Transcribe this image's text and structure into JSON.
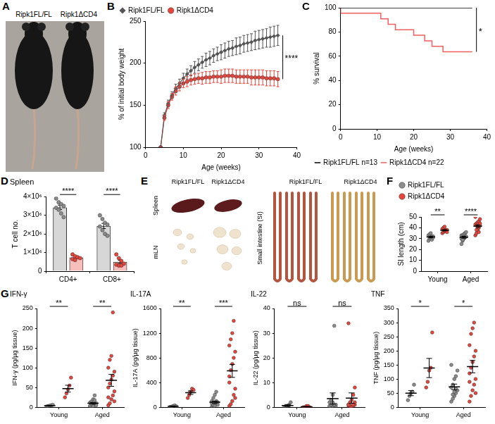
{
  "chart_data": [
    {
      "type": "line",
      "panel": "B",
      "x_label": "Age (weeks)",
      "y_label": "% of initial body weight",
      "x": [
        4,
        5,
        6,
        7,
        8,
        9,
        10,
        11,
        12,
        13,
        14,
        15,
        16,
        17,
        18,
        19,
        20,
        21,
        22,
        23,
        24,
        25,
        26,
        27,
        28,
        29,
        30,
        31,
        32,
        33,
        34,
        35
      ],
      "xlim": [
        0,
        40
      ],
      "xticks": [
        0,
        10,
        20,
        30,
        40
      ],
      "ylim": [
        100,
        250
      ],
      "yticks": [
        100,
        150,
        200,
        250
      ],
      "grid": false,
      "legend": "top",
      "series": [
        {
          "name": "Ripk1FL/FL",
          "color": "#555555",
          "marker": "diamond",
          "values": [
            100,
            138,
            152,
            162,
            170,
            176,
            182,
            187,
            191,
            195,
            198,
            201,
            204,
            206,
            209,
            211,
            213,
            215,
            217,
            218,
            220,
            221,
            223,
            224,
            225,
            227,
            228,
            229,
            230,
            231,
            232,
            233
          ],
          "errors": [
            0,
            3,
            4,
            4,
            5,
            5,
            6,
            6,
            6,
            7,
            7,
            7,
            8,
            8,
            8,
            8,
            9,
            9,
            9,
            9,
            10,
            10,
            10,
            10,
            10,
            11,
            11,
            11,
            11,
            12,
            12,
            12
          ]
        },
        {
          "name": "Ripk1ΔCD4",
          "color": "#e8453c",
          "marker": "circle",
          "values": [
            100,
            135,
            150,
            160,
            167,
            172,
            176,
            178,
            180,
            181,
            182,
            182,
            183,
            183,
            184,
            184,
            184,
            185,
            185,
            185,
            184,
            184,
            184,
            184,
            183,
            183,
            183,
            183,
            182,
            182,
            182,
            181
          ],
          "errors": [
            0,
            3,
            4,
            4,
            5,
            5,
            5,
            6,
            6,
            6,
            6,
            7,
            7,
            7,
            7,
            7,
            8,
            8,
            8,
            8,
            8,
            8,
            8,
            8,
            9,
            9,
            9,
            9,
            9,
            9,
            9,
            9
          ]
        }
      ],
      "annotations": [
        {
          "text": "****"
        }
      ]
    },
    {
      "type": "line",
      "line_style": "step",
      "panel": "C",
      "x_label": "Age (weeks)",
      "y_label": "% survival",
      "xlim": [
        0,
        40
      ],
      "xticks": [
        0,
        10,
        20,
        30,
        40
      ],
      "ylim": [
        0,
        100
      ],
      "yticks": [
        0,
        20,
        40,
        60,
        80,
        100
      ],
      "grid": false,
      "legend": "bottom",
      "series": [
        {
          "name": "Ripk1FL/FL n=13",
          "color": "#000000",
          "x": [
            0,
            36
          ],
          "values": [
            100,
            100
          ]
        },
        {
          "name": "Ripk1ΔCD4 n=22",
          "color": "#f06060",
          "x": [
            0,
            11,
            13,
            15,
            20,
            23,
            25,
            28,
            31,
            36
          ],
          "values": [
            100,
            95.5,
            90.9,
            86.4,
            81.8,
            77.3,
            72.7,
            68.2,
            63.6,
            63.6
          ]
        }
      ],
      "annotations": [
        {
          "text": "*"
        }
      ]
    },
    {
      "type": "bar",
      "panel": "D",
      "title": "Spleen",
      "y_label": "T cell no.",
      "categories": [
        "CD4+",
        "CD8+"
      ],
      "ylim": [
        0,
        4000000
      ],
      "yticks": [
        0,
        {
          "value": 1000000,
          "label": "1×10⁶"
        },
        {
          "value": 2000000,
          "label": "2×10⁶"
        },
        {
          "value": 3000000,
          "label": "3×10⁶"
        },
        {
          "value": 4000000,
          "label": "4×10⁶"
        }
      ],
      "grid": false,
      "series": [
        {
          "name": "Ripk1FL/FL",
          "color": "#8c8c8c",
          "values": [
            3425000,
            2425000
          ],
          "errors": [
            120000,
            140000
          ],
          "points": [
            [
              3900000,
              3700000,
              3600000,
              3500000,
              3400000,
              3300000,
              3100000,
              2900000
            ],
            [
              3000000,
              2800000,
              2600000,
              2500000,
              2400000,
              2200000,
              2000000,
              1900000
            ]
          ]
        },
        {
          "name": "Ripk1ΔCD4",
          "color": "#e8453c",
          "values": [
            733000,
            500000
          ],
          "errors": [
            50000,
            80000
          ],
          "points": [
            [
              900000,
              800000,
              750000,
              700000,
              650000,
              600000
            ],
            [
              900000,
              700000,
              550000,
              400000,
              350000,
              300000,
              300000
            ]
          ]
        }
      ],
      "annotations": [
        {
          "text": "****",
          "category": "CD4+"
        },
        {
          "text": "****",
          "category": "CD8+"
        }
      ]
    },
    {
      "type": "scatter",
      "panel": "F",
      "y_label": "SI length (cm)",
      "categories": [
        "Young",
        "Aged"
      ],
      "ylim": [
        0,
        50
      ],
      "yticks": [
        0,
        10,
        20,
        30,
        40,
        50
      ],
      "grid": false,
      "legend": "top",
      "series": [
        {
          "name": "Ripk1FL/FL",
          "color": "#8c8c8c",
          "values": [
            [
              28,
              30,
              31,
              32,
              32,
              33,
              34,
              35,
              29,
              31
            ],
            [
              25,
              28,
              30,
              31,
              32,
              33,
              33,
              34,
              35,
              36,
              30,
              29
            ]
          ],
          "means": [
            31.5,
            31.3
          ],
          "errors": [
            0.7,
            0.9
          ]
        },
        {
          "name": "Ripk1ΔCD4",
          "color": "#e8453c",
          "values": [
            [
              35,
              36,
              37,
              38,
              38,
              39,
              40,
              41,
              37,
              36
            ],
            [
              33,
              35,
              38,
              40,
              42,
              43,
              44,
              45,
              46,
              48,
              50,
              38,
              41,
              36,
              44
            ]
          ],
          "means": [
            37.7,
            41.5
          ],
          "errors": [
            0.6,
            1.2
          ]
        }
      ],
      "annotations": [
        {
          "text": "**",
          "category": "Young"
        },
        {
          "text": "****",
          "category": "Aged"
        }
      ]
    },
    {
      "type": "scatter",
      "panel": "G",
      "title": "IFN-γ",
      "y_label": "IFN-γ (pg/µg tissue)",
      "categories": [
        "Young",
        "Aged"
      ],
      "ylim": [
        0,
        250
      ],
      "yticks": [
        0,
        50,
        100,
        150,
        200,
        250
      ],
      "grid": false,
      "series": [
        {
          "name": "Ripk1FL/FL",
          "color": "#8c8c8c",
          "values": [
            [
              2,
              3,
              4,
              5,
              6
            ],
            [
              2,
              3,
              5,
              8,
              10,
              12,
              15,
              20,
              30,
              5,
              4,
              8,
              2,
              18
            ]
          ],
          "means": [
            4,
            10
          ],
          "errors": [
            0.7,
            2.2
          ]
        },
        {
          "name": "Ripk1ΔCD4",
          "color": "#e8453c",
          "values": [
            [
              25,
              35,
              45,
              55,
              75
            ],
            [
              5,
              10,
              20,
              30,
              40,
              50,
              60,
              70,
              80,
              90,
              100,
              120,
              130,
              240,
              15,
              25
            ]
          ],
          "means": [
            47,
            68
          ],
          "errors": [
            8.6,
            15
          ]
        }
      ],
      "annotations": [
        {
          "text": "**",
          "category": "Young"
        },
        {
          "text": "**",
          "category": "Aged"
        }
      ]
    },
    {
      "type": "scatter",
      "title": "IL-17A",
      "y_label": "IL-17A (pg/µg tissue)",
      "categories": [
        "Young",
        "Aged"
      ],
      "ylim": [
        0,
        1600
      ],
      "yticks": [
        0,
        400,
        800,
        1200,
        1600
      ],
      "grid": false,
      "series": [
        {
          "name": "Ripk1FL/FL",
          "color": "#8c8c8c",
          "values": [
            [
              5,
              10,
              20,
              30,
              15
            ],
            [
              10,
              20,
              30,
              50,
              80,
              100,
              150,
              200,
              250,
              40,
              60,
              30,
              20,
              100
            ]
          ],
          "means": [
            16,
            81
          ],
          "errors": [
            4.3,
            19
          ]
        },
        {
          "name": "Ripk1ΔCD4",
          "color": "#e8453c",
          "values": [
            [
              150,
              200,
              250,
              300,
              280
            ],
            [
              20,
              50,
              100,
              200,
              300,
              500,
              600,
              700,
              800,
              900,
              1000,
              1100,
              1200,
              1400,
              150,
              400
            ]
          ],
          "means": [
            236,
            589
          ],
          "errors": [
            28,
            105
          ]
        }
      ],
      "annotations": [
        {
          "text": "**",
          "category": "Young"
        },
        {
          "text": "***",
          "category": "Aged"
        }
      ]
    },
    {
      "type": "scatter",
      "title": "IL-22",
      "y_label": "IL-22 (pg/µg tissue)",
      "categories": [
        "Young",
        "Aged"
      ],
      "ylim": [
        0,
        40
      ],
      "yticks": [
        0,
        10,
        20,
        30,
        40
      ],
      "grid": false,
      "series": [
        {
          "name": "Ripk1FL/FL",
          "color": "#8c8c8c",
          "values": [
            [
              0,
              0,
              0.5,
              1,
              2
            ],
            [
              0,
              0,
              0,
              1,
              1,
              2,
              3,
              5,
              33,
              0,
              0.5,
              1,
              2,
              1
            ]
          ],
          "means": [
            0.7,
            3.5
          ],
          "errors": [
            0.4,
            2.3
          ]
        },
        {
          "name": "Ripk1ΔCD4",
          "color": "#e8453c",
          "values": [
            [
              0,
              0,
              0.5,
              0.5,
              0
            ],
            [
              0,
              0,
              0,
              0.5,
              1,
              1,
              2,
              3,
              5,
              8,
              34,
              0.5,
              0,
              1,
              2,
              1
            ]
          ],
          "means": [
            0.2,
            3.7
          ],
          "errors": [
            0.1,
            2.1
          ]
        }
      ],
      "annotations": [
        {
          "text": "ns",
          "category": "Young"
        },
        {
          "text": "ns",
          "category": "Aged"
        }
      ]
    },
    {
      "type": "scatter",
      "title": "TNF",
      "y_label": "TNF (pg/µg tissue)",
      "categories": [
        "Young",
        "Aged"
      ],
      "ylim": [
        0,
        350
      ],
      "yticks": [
        0,
        50,
        100,
        150,
        200,
        250,
        300,
        350
      ],
      "grid": false,
      "series": [
        {
          "name": "Ripk1FL/FL",
          "color": "#8c8c8c",
          "values": [
            [
              25,
              40,
              50,
              55,
              80
            ],
            [
              20,
              30,
              40,
              50,
              60,
              70,
              80,
              100,
              110,
              130,
              150,
              45,
              55,
              65
            ]
          ],
          "means": [
            50,
            72
          ],
          "errors": [
            9,
            10
          ]
        },
        {
          "name": "Ripk1ΔCD4",
          "color": "#e8453c",
          "values": [
            [
              70,
              90,
              130,
              140,
              265
            ],
            [
              20,
              40,
              60,
              80,
              100,
              120,
              140,
              160,
              180,
              200,
              220,
              260,
              280,
              300,
              50,
              90
            ]
          ],
          "means": [
            139,
            144
          ],
          "errors": [
            34,
            22
          ]
        }
      ],
      "annotations": [
        {
          "text": "*",
          "category": "Young"
        },
        {
          "text": "*",
          "category": "Aged"
        }
      ]
    }
  ],
  "images": [
    {
      "panel": "A",
      "labels": [
        "Ripk1FL/FL",
        "Ripk1ΔCD4"
      ]
    },
    {
      "panel": "E",
      "groups": [
        "Ripk1FL/FL",
        "Ripk1ΔCD4"
      ],
      "left_labels": [
        "Spleen",
        "mLN"
      ],
      "right_label": "Small intestine (SI)"
    }
  ]
}
